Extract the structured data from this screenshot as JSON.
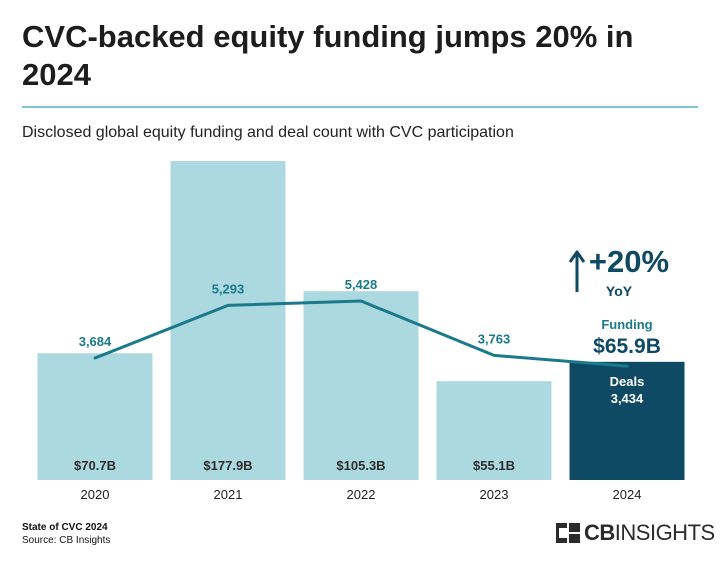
{
  "header": {
    "title": "CVC-backed equity funding jumps 20% in 2024",
    "subtitle": "Disclosed global equity funding and deal count with CVC participation"
  },
  "colors": {
    "bar_light": "#acd8e0",
    "bar_highlight": "#0e4a63",
    "line": "#1a7a8c",
    "deal_label": "#1a7a8c",
    "callout": "#0e4a63",
    "rule": "#7ec3d0"
  },
  "callout": {
    "arrow_icon": "up-arrow-icon",
    "change": "+20%",
    "period": "YoY",
    "funding_label": "Funding",
    "funding_value": "$65.9B",
    "deals_label": "Deals",
    "deals_value": "3,434"
  },
  "chart_data": {
    "type": "bar",
    "categories": [
      "2020",
      "2021",
      "2022",
      "2023",
      "2024"
    ],
    "series": [
      {
        "name": "Funding",
        "kind": "bar",
        "values": [
          70.7,
          177.9,
          105.3,
          55.1,
          65.9
        ],
        "labels": [
          "$70.7B",
          "$177.9B",
          "$105.3B",
          "$55.1B",
          "$65.9B"
        ]
      },
      {
        "name": "Deals",
        "kind": "line",
        "values": [
          3684,
          5293,
          5428,
          3763,
          3434
        ],
        "labels": [
          "3,684",
          "5,293",
          "5,428",
          "3,763",
          "3,434"
        ]
      }
    ],
    "highlight_category": "2024",
    "grid": false,
    "legend": "none"
  },
  "footer": {
    "report": "State of CVC 2024",
    "source": "Source: CB Insights",
    "logo_text_bold": "CB",
    "logo_text_light": "INSIGHTS"
  }
}
